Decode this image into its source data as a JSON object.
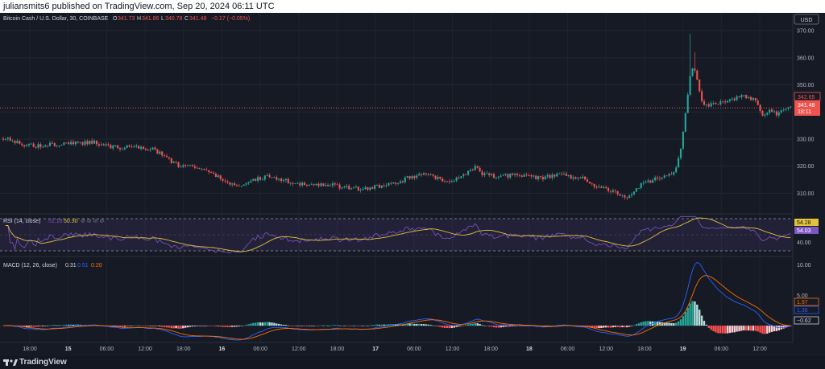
{
  "header": {
    "publisher": "juliansmits6 published on TradingView.com, Sep 20, 2024 06:11 UTC"
  },
  "footer": {
    "brand": "TradingView"
  },
  "colors": {
    "up": "#26a69a",
    "down": "#ef5350",
    "rsi": "#7e57c2",
    "rsi_ma": "#e2c33a",
    "macd": "#2962ff",
    "signal": "#ff6d00",
    "hist_up_strong": "#26a69a",
    "hist_up_weak": "#b2dfdb",
    "hist_down_strong": "#ff5252",
    "hist_down_weak": "#ffcdd2"
  },
  "chart_data": {
    "type": "candlestick",
    "symbol": "Bitcoin Cash / U.S. Dollar, 30, COINBASE",
    "ohlc": {
      "o_label": "O",
      "o": "341.73",
      "h_label": "H",
      "h": "341.86",
      "l_label": "L",
      "l": "340.78",
      "c_label": "C",
      "c": "341.48",
      "change": "−0.17 (−0.05%)"
    },
    "currency": "USD",
    "y_ticks": [
      "370.00",
      "360.00",
      "350.00",
      "340.00",
      "330.00",
      "320.00",
      "310.00"
    ],
    "y_tick_values": [
      370,
      360,
      350,
      340,
      330,
      320,
      310
    ],
    "ylim": [
      303,
      373
    ],
    "price_marks": {
      "prev": "342.65",
      "last": "341.48",
      "countdown": "18:11"
    },
    "last_price": 341.48,
    "x_ticks": [
      "18:00",
      "15",
      "06:00",
      "12:00",
      "18:00",
      "16",
      "06:00",
      "12:00",
      "18:00",
      "17",
      "06:00",
      "12:00",
      "18:00",
      "18",
      "06:00",
      "12:00",
      "18:00",
      "19",
      "06:00",
      "12:00"
    ],
    "price_path": [
      [
        0,
        330.5
      ],
      [
        18,
        329
      ],
      [
        38,
        327.5
      ],
      [
        60,
        327.8
      ],
      [
        80,
        328.6
      ],
      [
        100,
        328.4
      ],
      [
        115,
        328.8
      ],
      [
        130,
        327.6
      ],
      [
        150,
        326.8
      ],
      [
        170,
        327
      ],
      [
        190,
        326.2
      ],
      [
        205,
        323.5
      ],
      [
        220,
        320.5
      ],
      [
        240,
        319.8
      ],
      [
        255,
        318.5
      ],
      [
        270,
        316
      ],
      [
        285,
        313.5
      ],
      [
        300,
        313
      ],
      [
        315,
        315
      ],
      [
        335,
        316.5
      ],
      [
        350,
        315
      ],
      [
        365,
        313.8
      ],
      [
        385,
        313
      ],
      [
        405,
        313.3
      ],
      [
        420,
        312.5
      ],
      [
        435,
        311.8
      ],
      [
        450,
        311.5
      ],
      [
        470,
        312.5
      ],
      [
        490,
        313.5
      ],
      [
        505,
        315.5
      ],
      [
        520,
        317
      ],
      [
        535,
        316.5
      ],
      [
        550,
        314.5
      ],
      [
        565,
        314.8
      ],
      [
        578,
        317
      ],
      [
        590,
        319.5
      ],
      [
        600,
        317
      ],
      [
        615,
        316
      ],
      [
        630,
        316.5
      ],
      [
        645,
        316.6
      ],
      [
        660,
        315.8
      ],
      [
        675,
        315.5
      ],
      [
        690,
        317
      ],
      [
        705,
        316.2
      ],
      [
        720,
        316
      ],
      [
        735,
        313
      ],
      [
        750,
        311.5
      ],
      [
        765,
        310.5
      ],
      [
        780,
        308.5
      ],
      [
        795,
        313
      ],
      [
        810,
        315
      ],
      [
        825,
        316
      ],
      [
        838,
        318
      ],
      [
        845,
        327
      ],
      [
        852,
        342
      ],
      [
        858,
        357
      ],
      [
        864,
        355
      ],
      [
        870,
        344
      ],
      [
        880,
        342.3
      ],
      [
        895,
        344
      ],
      [
        910,
        345
      ],
      [
        925,
        346
      ],
      [
        940,
        344
      ],
      [
        945,
        338.5
      ],
      [
        955,
        341
      ],
      [
        965,
        339
      ],
      [
        975,
        341.5
      ],
      [
        982,
        342
      ]
    ],
    "spikes": [
      {
        "x": 856,
        "high": 368.8
      },
      {
        "x": 863,
        "high": 362
      }
    ],
    "rsi": {
      "label": "RSI (14, close)",
      "value1": "51.16",
      "value2": "50.30",
      "tag1": "54.28",
      "tag2": "54.03",
      "level": "40.00"
    },
    "macd": {
      "label": "MACD (12, 26, close)",
      "value_macd": "0.31",
      "value_signal1": "0.51",
      "value_signal2": "0.20",
      "y_ticks": [
        "10.00",
        "5.00"
      ],
      "y_tick_values": [
        10,
        5
      ],
      "ylim": [
        -2.5,
        11
      ],
      "tags": {
        "signal": "1.97",
        "macd": "1.36",
        "hist": "−0.62"
      }
    }
  }
}
